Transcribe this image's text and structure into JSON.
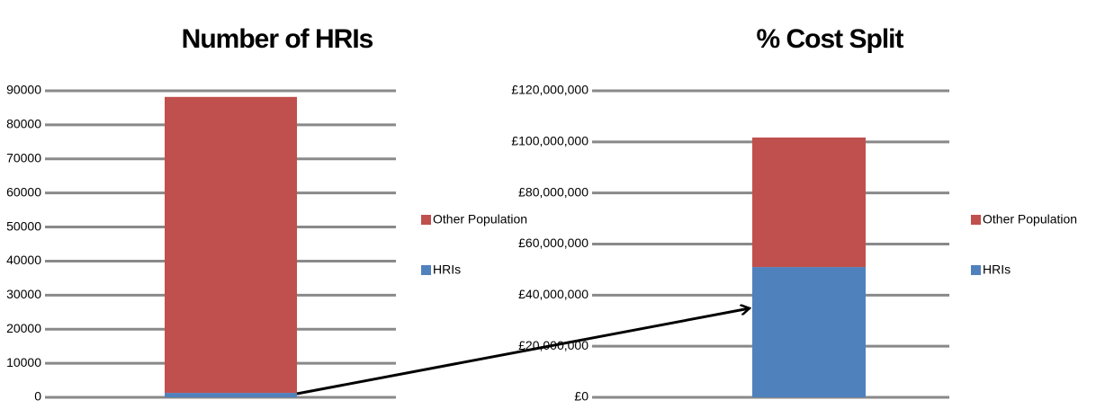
{
  "chart_data": [
    {
      "type": "bar",
      "stacked": true,
      "title": "Number of HRIs",
      "categories": [
        null
      ],
      "series": [
        {
          "name": "HRIs",
          "color": "#4f81bd",
          "values": [
            1300
          ]
        },
        {
          "name": "Other Population",
          "color": "#c0504d",
          "values": [
            86900
          ]
        }
      ],
      "ylim": [
        0,
        90000
      ],
      "yticks": [
        0,
        10000,
        20000,
        30000,
        40000,
        50000,
        60000,
        70000,
        80000,
        90000
      ],
      "grid": true,
      "legend": "right"
    },
    {
      "type": "bar",
      "stacked": true,
      "title": "% Cost Split",
      "categories": [
        null
      ],
      "series": [
        {
          "name": "HRIs",
          "color": "#4f81bd",
          "values": [
            51000000
          ]
        },
        {
          "name": "Other Population",
          "color": "#c0504d",
          "values": [
            50700000
          ]
        }
      ],
      "ylim": [
        0,
        120000000
      ],
      "yticks": [
        {
          "value": 0,
          "label": "£0"
        },
        {
          "value": 20000000,
          "label": "£20,000,000"
        },
        {
          "value": 40000000,
          "label": "£40,000,000"
        },
        {
          "value": 60000000,
          "label": "£60,000,000"
        },
        {
          "value": 80000000,
          "label": "£80,000,000"
        },
        {
          "value": 100000000,
          "label": "£100,000,000"
        },
        {
          "value": 120000000,
          "label": "£120,000,000"
        }
      ],
      "grid": true,
      "legend": "right"
    }
  ]
}
